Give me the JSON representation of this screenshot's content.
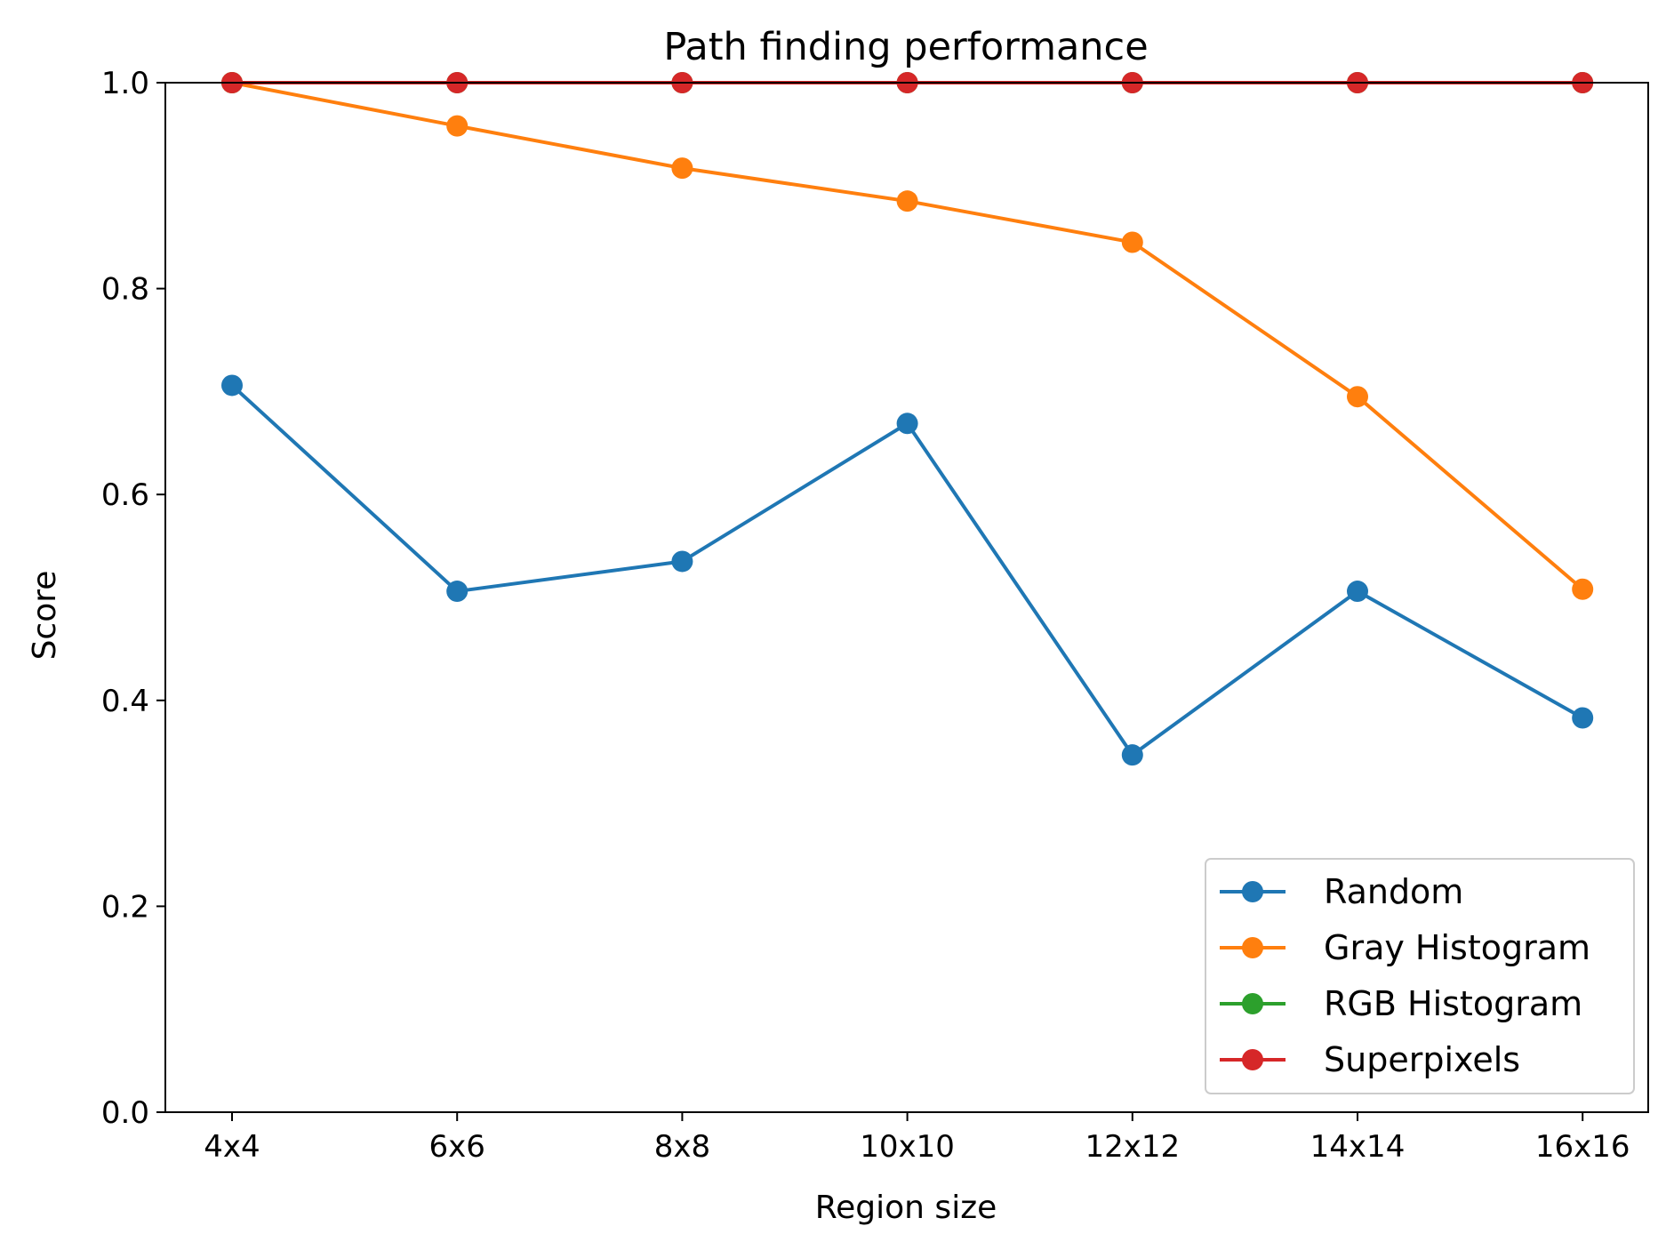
{
  "chart_data": {
    "type": "line",
    "title": "Path finding performance",
    "xlabel": "Region size",
    "ylabel": "Score",
    "categories": [
      "4x4",
      "6x6",
      "8x8",
      "10x10",
      "12x12",
      "14x14",
      "16x16"
    ],
    "ylim": [
      0.0,
      1.0
    ],
    "yticks": [
      "0.0",
      "0.2",
      "0.4",
      "0.6",
      "0.8",
      "1.0"
    ],
    "grid": false,
    "legend_position": "lower-right",
    "series": [
      {
        "name": "Random",
        "color": "#1f77b4",
        "values": [
          0.706,
          0.506,
          0.535,
          0.669,
          0.347,
          0.506,
          0.383
        ]
      },
      {
        "name": "Gray Histogram",
        "color": "#ff7f0e",
        "values": [
          1.0,
          0.958,
          0.917,
          0.885,
          0.845,
          0.695,
          0.508
        ]
      },
      {
        "name": "RGB Histogram",
        "color": "#2ca02c",
        "values": [
          1.0,
          1.0,
          1.0,
          1.0,
          1.0,
          1.0,
          1.0
        ]
      },
      {
        "name": "Superpixels",
        "color": "#d62728",
        "values": [
          1.0,
          1.0,
          1.0,
          1.0,
          1.0,
          1.0,
          1.0
        ]
      }
    ]
  }
}
